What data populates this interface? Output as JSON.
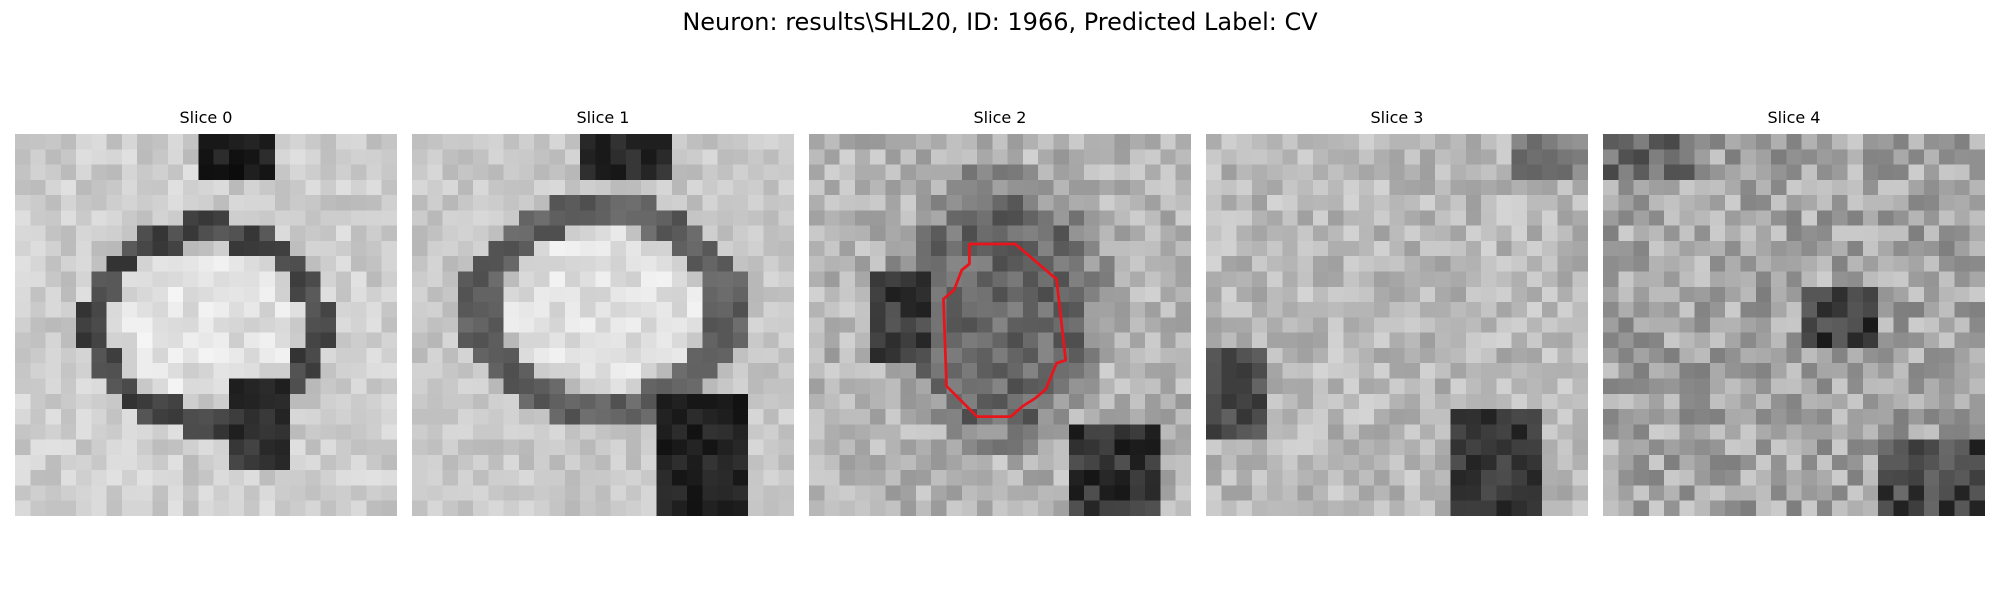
{
  "figure": {
    "title": "Neuron: results\\SHL20, ID: 1966, Predicted Label: CV"
  },
  "panels": [
    {
      "title": "Slice 0",
      "grid": 25,
      "seed": 11,
      "pattern": "ring",
      "contour": false
    },
    {
      "title": "Slice 1",
      "grid": 25,
      "seed": 23,
      "pattern": "ring-blur",
      "contour": false
    },
    {
      "title": "Slice 2",
      "grid": 25,
      "seed": 37,
      "pattern": "dark-blob",
      "contour": true
    },
    {
      "title": "Slice 3",
      "grid": 25,
      "seed": 51,
      "pattern": "noise-light",
      "contour": false
    },
    {
      "title": "Slice 4",
      "grid": 25,
      "seed": 67,
      "pattern": "noise-dark",
      "contour": false
    }
  ],
  "colors": {
    "contour": "#e8141b",
    "colormap": "grayscale"
  }
}
